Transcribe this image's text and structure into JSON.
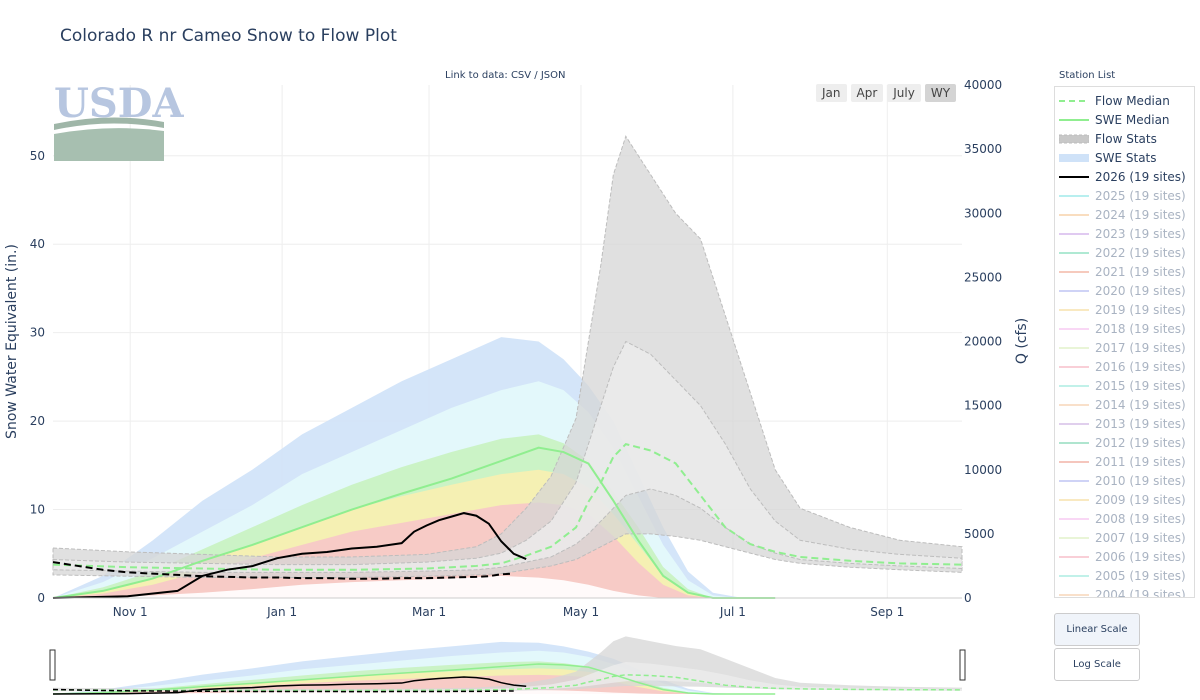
{
  "title": "Colorado R nr Cameo Snow to Flow Plot",
  "data_link": {
    "prefix": "Link to data: ",
    "csv": "CSV",
    "sep": " / ",
    "json": "JSON"
  },
  "range_buttons": [
    {
      "label": "Jan",
      "active": false
    },
    {
      "label": "Apr",
      "active": false
    },
    {
      "label": "July",
      "active": false
    },
    {
      "label": "WY",
      "active": true
    }
  ],
  "logo": {
    "text": "USDA"
  },
  "legend": {
    "title": "Station List",
    "items": [
      {
        "label": "Flow Median",
        "kind": "dash",
        "color": "#90ee90",
        "on": true
      },
      {
        "label": "SWE Median",
        "kind": "line",
        "color": "#90ee90",
        "on": true
      },
      {
        "label": "Flow Stats",
        "kind": "band",
        "color": "#c8c8c8",
        "on": true
      },
      {
        "label": "SWE Stats",
        "kind": "band",
        "color": "#cfe2f8",
        "on": true
      },
      {
        "label": "2026 (19 sites)",
        "kind": "line",
        "color": "#000000",
        "on": true
      },
      {
        "label": "2025 (19 sites)",
        "kind": "line",
        "color": "#7fe3e3",
        "on": false
      },
      {
        "label": "2024 (19 sites)",
        "kind": "line",
        "color": "#f5c28c",
        "on": false
      },
      {
        "label": "2023 (19 sites)",
        "kind": "line",
        "color": "#c7a0e6",
        "on": false
      },
      {
        "label": "2022 (19 sites)",
        "kind": "line",
        "color": "#6fd8b0",
        "on": false
      },
      {
        "label": "2021 (19 sites)",
        "kind": "line",
        "color": "#f0a088",
        "on": false
      },
      {
        "label": "2020 (19 sites)",
        "kind": "line",
        "color": "#a8b0f0",
        "on": false
      },
      {
        "label": "2019 (19 sites)",
        "kind": "line",
        "color": "#f5d890",
        "on": false
      },
      {
        "label": "2018 (19 sites)",
        "kind": "line",
        "color": "#f5b8ee",
        "on": false
      },
      {
        "label": "2017 (19 sites)",
        "kind": "line",
        "color": "#d8eeb8",
        "on": false
      },
      {
        "label": "2016 (19 sites)",
        "kind": "line",
        "color": "#f5a8b8",
        "on": false
      },
      {
        "label": "2015 (19 sites)",
        "kind": "line",
        "color": "#90e6d8",
        "on": false
      },
      {
        "label": "2014 (19 sites)",
        "kind": "line",
        "color": "#f5c8a0",
        "on": false
      },
      {
        "label": "2013 (19 sites)",
        "kind": "line",
        "color": "#c8a8e0",
        "on": false
      },
      {
        "label": "2012 (19 sites)",
        "kind": "line",
        "color": "#6ed0a8",
        "on": false
      },
      {
        "label": "2011 (19 sites)",
        "kind": "line",
        "color": "#ee9888",
        "on": false
      },
      {
        "label": "2010 (19 sites)",
        "kind": "line",
        "color": "#a8b0f0",
        "on": false
      },
      {
        "label": "2009 (19 sites)",
        "kind": "line",
        "color": "#f5d890",
        "on": false
      },
      {
        "label": "2008 (19 sites)",
        "kind": "line",
        "color": "#f5b8ee",
        "on": false
      },
      {
        "label": "2007 (19 sites)",
        "kind": "line",
        "color": "#d8eeb8",
        "on": false
      },
      {
        "label": "2006 (19 sites)",
        "kind": "line",
        "color": "#f5a8b8",
        "on": false
      },
      {
        "label": "2005 (19 sites)",
        "kind": "line",
        "color": "#90e6d8",
        "on": false
      },
      {
        "label": "2004 (19 sites)",
        "kind": "line",
        "color": "#f5c8a0",
        "on": false
      }
    ]
  },
  "scale_buttons": [
    {
      "label": "Linear Scale",
      "active": true
    },
    {
      "label": "Log Scale",
      "active": false
    }
  ],
  "colors": {
    "swe_stats": "#cfe2f8",
    "flow_stats": "#c8c8c8",
    "swe_median": "#90ee90",
    "flow_median": "#90ee90",
    "current": "#000000"
  },
  "chart_data": {
    "type": "area",
    "ylabel": "Snow Water Equivalent (in.)",
    "y2label": "Q (cfs)",
    "ylim": [
      0,
      58
    ],
    "y2lim": [
      0,
      40000
    ],
    "yticks": [
      0,
      10,
      20,
      30,
      40,
      50
    ],
    "y2ticks": [
      0,
      5000,
      10000,
      15000,
      20000,
      25000,
      30000,
      35000,
      40000
    ],
    "x_tick_labels": [
      "Nov 1",
      "Jan 1",
      "Mar 1",
      "May 1",
      "Jul 1",
      "Sep 1"
    ],
    "x_tick_days": [
      31,
      92,
      151,
      212,
      273,
      335
    ],
    "xlim_days": [
      0,
      365
    ],
    "grid": true,
    "legend_position": "right",
    "swe_percentiles": {
      "x_days": [
        0,
        20,
        40,
        60,
        80,
        100,
        120,
        140,
        160,
        180,
        195,
        205,
        215,
        225,
        235,
        245,
        255,
        265,
        275,
        290
      ],
      "bands": [
        {
          "name": "min-10",
          "color": "#ffffff",
          "lo": [
            0,
            0,
            0,
            0,
            0,
            0,
            0,
            0,
            0,
            0,
            0,
            0,
            0,
            0,
            0,
            0,
            0,
            0,
            0,
            0
          ],
          "hi": [
            0,
            0.1,
            0.3,
            0.6,
            1.0,
            1.5,
            1.8,
            2.0,
            2.2,
            2.5,
            2.3,
            2.0,
            1.5,
            0.8,
            0.3,
            0,
            0,
            0,
            0,
            0
          ]
        },
        {
          "name": "10-30",
          "color": "#f7c6c8",
          "lo": [
            0,
            0.1,
            0.3,
            0.6,
            1.0,
            1.5,
            1.8,
            2.0,
            2.2,
            2.5,
            2.3,
            2.0,
            1.5,
            0.8,
            0.3,
            0,
            0,
            0,
            0,
            0
          ],
          "hi": [
            0,
            0.5,
            1.5,
            3.0,
            4.5,
            6.0,
            7.5,
            8.5,
            9.5,
            10.5,
            10.8,
            10.5,
            9.5,
            7.0,
            4.0,
            1.5,
            0.3,
            0,
            0,
            0
          ]
        },
        {
          "name": "30-50",
          "color": "#f9efb0",
          "lo": [
            0,
            0.5,
            1.5,
            3.0,
            4.5,
            6.0,
            7.5,
            8.5,
            9.5,
            10.5,
            10.8,
            10.5,
            9.5,
            7.0,
            4.0,
            1.5,
            0.3,
            0,
            0,
            0
          ],
          "hi": [
            0,
            0.8,
            2.2,
            4.2,
            6.0,
            8.0,
            10.0,
            11.5,
            12.8,
            14.0,
            14.5,
            14.0,
            12.5,
            9.5,
            6.0,
            2.5,
            0.6,
            0,
            0,
            0
          ]
        },
        {
          "name": "50-70",
          "color": "#c8f2c0",
          "lo": [
            0,
            0.8,
            2.2,
            4.2,
            6.0,
            8.0,
            10.0,
            11.5,
            12.8,
            14.0,
            14.5,
            14.0,
            12.5,
            9.5,
            6.0,
            2.5,
            0.6,
            0,
            0,
            0
          ],
          "hi": [
            0,
            1.2,
            3.0,
            5.5,
            8.0,
            10.5,
            12.8,
            14.8,
            16.5,
            18.0,
            18.5,
            17.5,
            15.5,
            12.0,
            8.0,
            3.5,
            1.0,
            0,
            0,
            0
          ]
        },
        {
          "name": "70-90",
          "color": "#e4f9fb",
          "lo": [
            0,
            1.2,
            3.0,
            5.5,
            8.0,
            10.5,
            12.8,
            14.8,
            16.5,
            18.0,
            18.5,
            17.5,
            15.5,
            12.0,
            8.0,
            3.5,
            1.0,
            0,
            0,
            0
          ],
          "hi": [
            0,
            1.8,
            4.5,
            7.5,
            10.5,
            14.0,
            16.5,
            19.0,
            21.5,
            23.5,
            24.5,
            23.5,
            21.0,
            17.0,
            11.5,
            6.0,
            2.0,
            0.3,
            0,
            0
          ]
        },
        {
          "name": "90-max",
          "color": "#cfe2f8",
          "lo": [
            0,
            1.8,
            4.5,
            7.5,
            10.5,
            14.0,
            16.5,
            19.0,
            21.5,
            23.5,
            24.5,
            23.5,
            21.0,
            17.0,
            11.5,
            6.0,
            2.0,
            0.3,
            0,
            0
          ],
          "hi": [
            0,
            2.5,
            6.5,
            11.0,
            14.5,
            18.5,
            21.5,
            24.5,
            27.0,
            29.5,
            29.0,
            27.0,
            24.0,
            20.0,
            14.0,
            8.0,
            3.0,
            0.6,
            0.1,
            0
          ]
        }
      ]
    },
    "swe_median": {
      "x": [
        0,
        20,
        40,
        60,
        80,
        100,
        120,
        140,
        160,
        180,
        195,
        205,
        215,
        225,
        235,
        245,
        255,
        265,
        275,
        290
      ],
      "y": [
        0,
        0.8,
        2.2,
        4.2,
        6.0,
        8.0,
        10.0,
        11.8,
        13.5,
        15.5,
        17.0,
        16.5,
        15.2,
        11.0,
        6.5,
        2.5,
        0.6,
        0,
        0,
        0
      ]
    },
    "swe_current_2026": {
      "x": [
        0,
        30,
        50,
        60,
        70,
        80,
        90,
        100,
        110,
        120,
        130,
        140,
        145,
        150,
        155,
        160,
        165,
        170,
        175,
        180,
        185,
        190
      ],
      "y": [
        0,
        0.2,
        0.8,
        2.5,
        3.2,
        3.6,
        4.5,
        5.0,
        5.2,
        5.6,
        5.8,
        6.2,
        7.5,
        8.2,
        8.8,
        9.2,
        9.6,
        9.3,
        8.4,
        6.4,
        5.0,
        4.4
      ]
    },
    "flow_stats": {
      "x_days": [
        0,
        30,
        60,
        90,
        120,
        150,
        170,
        180,
        190,
        200,
        210,
        215,
        220,
        225,
        230,
        240,
        250,
        260,
        270,
        280,
        290,
        300,
        320,
        340,
        365
      ],
      "bands": [
        {
          "name": "outer",
          "color": "#d6d6d6",
          "lo": [
            1800,
            1700,
            1600,
            1600,
            1600,
            1700,
            1800,
            1900,
            2200,
            2500,
            3000,
            3500,
            4000,
            4500,
            5000,
            5000,
            4800,
            4500,
            4000,
            3500,
            3000,
            2700,
            2400,
            2200,
            2000
          ],
          "hi": [
            3900,
            3600,
            3400,
            3200,
            3200,
            3400,
            4000,
            5000,
            7000,
            9500,
            14000,
            20000,
            26000,
            33000,
            36000,
            33000,
            30000,
            28000,
            22000,
            16000,
            10000,
            7000,
            5500,
            4500,
            4000
          ]
        },
        {
          "name": "inner",
          "color": "#eeeeee",
          "lo": [
            2200,
            2100,
            2000,
            2000,
            2000,
            2100,
            2200,
            2400,
            2800,
            3200,
            4200,
            5000,
            6000,
            7000,
            8000,
            8500,
            8000,
            7000,
            5500,
            4200,
            3500,
            3000,
            2700,
            2500,
            2300
          ],
          "hi": [
            3000,
            2800,
            2700,
            2600,
            2600,
            2800,
            3100,
            3500,
            4500,
            6000,
            9000,
            12000,
            15000,
            18000,
            20000,
            19000,
            17000,
            15000,
            12000,
            8500,
            6000,
            4500,
            3800,
            3400,
            3100
          ]
        }
      ]
    },
    "flow_median": {
      "x": [
        0,
        30,
        60,
        90,
        120,
        150,
        170,
        180,
        190,
        200,
        210,
        215,
        220,
        225,
        230,
        240,
        250,
        260,
        270,
        280,
        290,
        300,
        320,
        340,
        365
      ],
      "y": [
        2600,
        2400,
        2300,
        2200,
        2200,
        2300,
        2500,
        2700,
        3300,
        4000,
        5500,
        7500,
        9000,
        11000,
        12000,
        11500,
        10500,
        8000,
        5500,
        4200,
        3600,
        3200,
        2900,
        2700,
        2600
      ]
    },
    "flow_current_2026": {
      "x": [
        0,
        10,
        20,
        30,
        40,
        50,
        60,
        70,
        80,
        90,
        100,
        110,
        120,
        130,
        140,
        150,
        160,
        170,
        175,
        180,
        185
      ],
      "y": [
        2800,
        2500,
        2200,
        2000,
        1900,
        1800,
        1700,
        1650,
        1600,
        1600,
        1550,
        1550,
        1500,
        1500,
        1550,
        1550,
        1600,
        1650,
        1700,
        1850,
        1900
      ]
    }
  }
}
